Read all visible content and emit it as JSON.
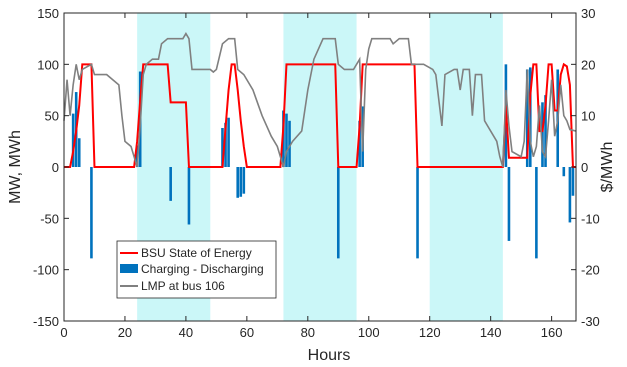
{
  "chart_data": {
    "type": "line",
    "xlabel": "Hours",
    "ylabel_left": "MW, MWh",
    "ylabel_right": "$/MWh",
    "xlim": [
      0,
      168
    ],
    "ylim_left": [
      -150,
      150
    ],
    "ylim_right": [
      -30,
      30
    ],
    "x_ticks": [
      "0",
      "20",
      "40",
      "60",
      "80",
      "100",
      "120",
      "140",
      "160"
    ],
    "y_ticks_left": [
      "150",
      "100",
      "50",
      "0",
      "-50",
      "-100",
      "-150"
    ],
    "y_ticks_right": [
      "30",
      "20",
      "10",
      "0",
      "-10",
      "-20",
      "-30"
    ],
    "shaded_bands": [
      [
        24,
        48
      ],
      [
        72,
        96
      ],
      [
        120,
        144
      ]
    ],
    "grid": false,
    "legend_position": "lower-left",
    "colors": {
      "state_of_energy": "#ff0000",
      "charging": "#0072bd",
      "lmp": "#808080",
      "band": "#cbf7f8"
    },
    "series": [
      {
        "name": "BSU State of Energy",
        "kind": "line",
        "axis": "left",
        "points": [
          [
            0,
            0
          ],
          [
            2,
            0
          ],
          [
            3,
            15
          ],
          [
            4,
            35
          ],
          [
            5,
            60
          ],
          [
            6,
            100
          ],
          [
            9,
            100
          ],
          [
            10,
            0
          ],
          [
            23,
            0
          ],
          [
            24,
            25
          ],
          [
            25,
            65
          ],
          [
            26,
            100
          ],
          [
            34,
            100
          ],
          [
            35,
            63
          ],
          [
            40,
            63
          ],
          [
            41,
            0
          ],
          [
            52,
            0
          ],
          [
            53,
            38
          ],
          [
            54,
            75
          ],
          [
            55,
            100
          ],
          [
            56,
            100
          ],
          [
            57,
            75
          ],
          [
            58,
            45
          ],
          [
            59,
            20
          ],
          [
            60,
            0
          ],
          [
            71,
            0
          ],
          [
            72,
            40
          ],
          [
            73,
            100
          ],
          [
            89,
            100
          ],
          [
            90,
            0
          ],
          [
            96,
            0
          ],
          [
            97,
            40
          ],
          [
            98,
            100
          ],
          [
            115,
            100
          ],
          [
            116,
            0
          ],
          [
            144,
            0
          ],
          [
            145,
            60
          ],
          [
            146,
            9
          ],
          [
            152,
            9
          ],
          [
            153,
            70
          ],
          [
            154,
            100
          ],
          [
            155,
            100
          ],
          [
            156,
            35
          ],
          [
            157,
            35
          ],
          [
            158,
            60
          ],
          [
            159,
            100
          ],
          [
            160,
            100
          ],
          [
            161,
            55
          ],
          [
            162,
            55
          ],
          [
            163,
            90
          ],
          [
            164,
            100
          ],
          [
            165,
            98
          ],
          [
            166,
            80
          ],
          [
            167,
            0
          ],
          [
            168,
            0
          ]
        ]
      },
      {
        "name": "Charging - Discharging",
        "kind": "bar",
        "axis": "left",
        "points": [
          [
            3,
            52
          ],
          [
            4,
            73
          ],
          [
            5,
            28
          ],
          [
            9,
            -89
          ],
          [
            24,
            21
          ],
          [
            25,
            93
          ],
          [
            35,
            -33
          ],
          [
            41,
            -56
          ],
          [
            52,
            38
          ],
          [
            53,
            43
          ],
          [
            54,
            48
          ],
          [
            57,
            -30
          ],
          [
            58,
            -29
          ],
          [
            59,
            -26
          ],
          [
            72,
            55
          ],
          [
            73,
            52
          ],
          [
            74,
            45
          ],
          [
            90,
            -89
          ],
          [
            97,
            45
          ],
          [
            98,
            59
          ],
          [
            116,
            -89
          ],
          [
            145,
            100
          ],
          [
            146,
            -72
          ],
          [
            152,
            95
          ],
          [
            153,
            97
          ],
          [
            155,
            -89
          ],
          [
            157,
            63
          ],
          [
            158,
            70
          ],
          [
            162,
            95
          ],
          [
            164,
            -9
          ],
          [
            166,
            -54
          ],
          [
            167,
            -28
          ]
        ]
      },
      {
        "name": "LMP at bus 106",
        "kind": "line",
        "axis": "right",
        "points": [
          [
            0,
            9
          ],
          [
            1,
            17
          ],
          [
            2,
            10
          ],
          [
            3,
            16
          ],
          [
            4,
            20
          ],
          [
            5,
            17
          ],
          [
            6,
            19
          ],
          [
            9,
            20
          ],
          [
            10,
            18
          ],
          [
            14,
            18
          ],
          [
            16,
            17
          ],
          [
            18,
            16
          ],
          [
            19,
            10
          ],
          [
            20,
            5
          ],
          [
            22,
            4
          ],
          [
            23,
            2
          ],
          [
            24,
            0
          ],
          [
            25,
            8
          ],
          [
            26,
            18
          ],
          [
            27,
            20
          ],
          [
            29,
            21
          ],
          [
            31,
            21
          ],
          [
            32,
            24
          ],
          [
            34,
            25
          ],
          [
            39,
            25
          ],
          [
            40,
            26
          ],
          [
            41,
            25
          ],
          [
            42,
            19
          ],
          [
            48,
            19
          ],
          [
            49,
            18.5
          ],
          [
            50,
            19
          ],
          [
            52,
            24
          ],
          [
            54,
            25
          ],
          [
            56,
            25
          ],
          [
            57,
            19
          ],
          [
            59,
            18
          ],
          [
            62,
            15
          ],
          [
            65,
            10
          ],
          [
            68,
            6
          ],
          [
            70,
            4
          ],
          [
            72,
            0
          ],
          [
            73,
            3
          ],
          [
            75,
            5
          ],
          [
            78,
            7
          ],
          [
            80,
            15
          ],
          [
            82,
            21
          ],
          [
            85,
            25
          ],
          [
            89,
            25
          ],
          [
            90,
            20
          ],
          [
            92,
            19
          ],
          [
            95,
            19
          ],
          [
            97,
            21
          ],
          [
            98,
            3
          ],
          [
            99,
            19
          ],
          [
            100,
            23
          ],
          [
            101,
            25
          ],
          [
            107,
            25
          ],
          [
            108,
            24
          ],
          [
            110,
            25
          ],
          [
            113,
            25
          ],
          [
            114,
            20
          ],
          [
            118,
            20
          ],
          [
            121,
            19
          ],
          [
            122,
            18
          ],
          [
            124,
            8
          ],
          [
            125,
            18
          ],
          [
            128,
            19
          ],
          [
            129,
            19
          ],
          [
            130,
            15
          ],
          [
            131,
            19
          ],
          [
            133,
            19
          ],
          [
            134,
            10
          ],
          [
            135,
            18
          ],
          [
            137,
            18
          ],
          [
            138,
            9
          ],
          [
            140,
            7
          ],
          [
            142,
            5
          ],
          [
            143,
            2
          ],
          [
            144,
            0
          ],
          [
            145,
            15
          ],
          [
            146,
            8
          ],
          [
            147,
            3
          ],
          [
            150,
            2
          ],
          [
            151,
            5
          ],
          [
            152,
            19
          ],
          [
            153,
            5
          ],
          [
            154,
            2
          ],
          [
            155,
            4
          ],
          [
            156,
            12
          ],
          [
            157,
            3
          ],
          [
            158,
            2
          ],
          [
            159,
            9
          ],
          [
            160,
            17
          ],
          [
            161,
            6
          ],
          [
            162,
            9
          ],
          [
            163,
            16
          ],
          [
            164,
            10
          ],
          [
            165,
            9
          ],
          [
            166,
            7.3
          ],
          [
            168,
            7
          ]
        ]
      }
    ]
  }
}
